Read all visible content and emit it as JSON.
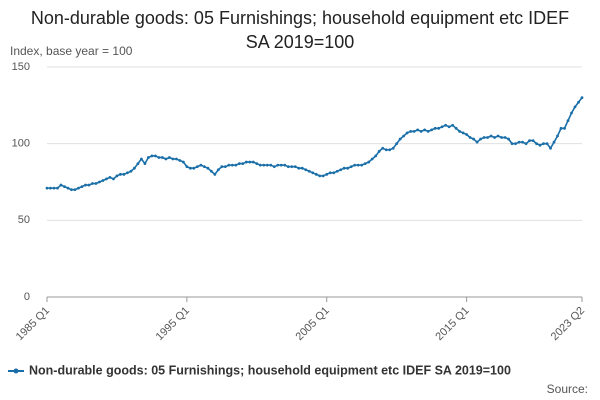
{
  "chart_data": {
    "type": "line",
    "title": "Non-durable goods: 05 Furnishings; household equipment etc IDEF SA 2019=100",
    "y_label": "Index, base year = 100",
    "source": "Source:",
    "categories": [
      "1985 Q1",
      null,
      null,
      null,
      null,
      null,
      null,
      null,
      null,
      null,
      null,
      null,
      null,
      null,
      null,
      null,
      null,
      null,
      null,
      null,
      null,
      null,
      null,
      null,
      null,
      null,
      null,
      null,
      null,
      null,
      null,
      null,
      null,
      null,
      null,
      null,
      null,
      null,
      null,
      null,
      "1995 Q1",
      null,
      null,
      null,
      null,
      null,
      null,
      null,
      null,
      null,
      null,
      null,
      null,
      null,
      null,
      null,
      null,
      null,
      null,
      null,
      null,
      null,
      null,
      null,
      null,
      null,
      null,
      null,
      null,
      null,
      null,
      null,
      null,
      null,
      null,
      null,
      null,
      null,
      null,
      null,
      "2005 Q1",
      null,
      null,
      null,
      null,
      null,
      null,
      null,
      null,
      null,
      null,
      null,
      null,
      null,
      null,
      null,
      null,
      null,
      null,
      null,
      null,
      null,
      null,
      null,
      null,
      null,
      null,
      null,
      null,
      null,
      null,
      null,
      null,
      null,
      null,
      null,
      null,
      null,
      null,
      null,
      "2015 Q1",
      null,
      null,
      null,
      null,
      null,
      null,
      null,
      null,
      null,
      null,
      null,
      null,
      null,
      null,
      null,
      null,
      null,
      null,
      null,
      null,
      null,
      null,
      null,
      null,
      null,
      null,
      null,
      null,
      null,
      null,
      null,
      null,
      "2023 Q2"
    ],
    "series": [
      {
        "name": "Non-durable goods: 05 Furnishings; household equipment etc IDEF SA 2019=100",
        "color": "#1a6fa8",
        "values": [
          71,
          71,
          71,
          71,
          73,
          72,
          71,
          70,
          70,
          71,
          72,
          73,
          73,
          74,
          74,
          75,
          76,
          77,
          78,
          77,
          79,
          80,
          80,
          81,
          82,
          84,
          87,
          90,
          87,
          91,
          92,
          92,
          91,
          91,
          90,
          91,
          90,
          90,
          89,
          88,
          85,
          84,
          84,
          85,
          86,
          85,
          84,
          82,
          80,
          83,
          85,
          85,
          86,
          86,
          86,
          87,
          87,
          88,
          88,
          88,
          87,
          86,
          86,
          86,
          86,
          85,
          86,
          86,
          86,
          85,
          85,
          85,
          84,
          84,
          83,
          82,
          81,
          80,
          79,
          79,
          80,
          81,
          81,
          82,
          83,
          84,
          84,
          85,
          86,
          86,
          86,
          87,
          88,
          90,
          92,
          95,
          97,
          96,
          96,
          97,
          100,
          103,
          105,
          107,
          108,
          108,
          109,
          108,
          109,
          108,
          109,
          110,
          110,
          111,
          112,
          111,
          112,
          110,
          108,
          107,
          106,
          104,
          103,
          101,
          103,
          104,
          104,
          105,
          104,
          105,
          104,
          104,
          103,
          100,
          100,
          101,
          101,
          100,
          102,
          102,
          100,
          99,
          100,
          100,
          97,
          101,
          105,
          110,
          110,
          115,
          120,
          124,
          127,
          130
        ]
      }
    ],
    "ylim": [
      0,
      150
    ],
    "yticks": [
      0,
      50,
      100,
      150
    ],
    "grid": true,
    "legend": "bottom"
  }
}
